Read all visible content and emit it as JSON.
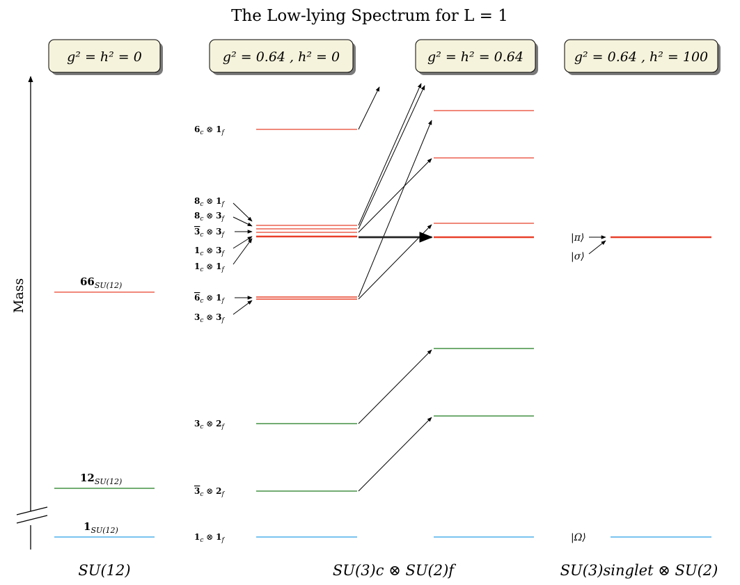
{
  "title": "The Low-lying Spectrum for L = 1",
  "axis": {
    "label": "Mass"
  },
  "boxes": [
    {
      "text": "g² = h² = 0"
    },
    {
      "text": "g² = 0.64 ,  h² = 0"
    },
    {
      "text": "g² = h² = 0.64"
    },
    {
      "text": "g² = 0.64 ,  h² = 100"
    }
  ],
  "columns": {
    "su12": {
      "label": "SU(12)",
      "levels": [
        {
          "rep": "66",
          "sub": "SU(12)",
          "color": "#e8402a",
          "y": 420
        },
        {
          "rep": "12",
          "sub": "SU(12)",
          "color": "#1f7a1f",
          "y": 702
        },
        {
          "rep": "1",
          "sub": "SU(12)",
          "color": "#2aa0e8",
          "y": 772
        }
      ]
    },
    "flavor": {
      "label": "SU(3)c ⊗ SU(2)f",
      "states": [
        {
          "c": "6",
          "cbar": false,
          "f": "1",
          "y": 186,
          "label_y": 186
        },
        {
          "c": "8",
          "cbar": false,
          "f": "1",
          "y": 324,
          "label_y": 289
        },
        {
          "c": "8",
          "cbar": false,
          "f": "3",
          "y": 329,
          "label_y": 310
        },
        {
          "c": "3",
          "cbar": true,
          "f": "3",
          "y": 334,
          "label_y": 333
        },
        {
          "c": "1",
          "cbar": false,
          "f": "3",
          "y": 338,
          "label_y": 360
        },
        {
          "c": "1",
          "cbar": false,
          "f": "1",
          "y": 341,
          "label_y": 383
        },
        {
          "c": "6",
          "cbar": true,
          "f": "1",
          "y": 428,
          "label_y": 428
        },
        {
          "c": "3",
          "cbar": false,
          "f": "3",
          "y": 430,
          "label_y": 456
        },
        {
          "c": "3",
          "cbar": false,
          "f": "2",
          "y": 609,
          "label_y": 609
        },
        {
          "c": "3",
          "cbar": true,
          "f": "2",
          "y": 706,
          "label_y": 706
        },
        {
          "c": "1",
          "cbar": false,
          "f": "1",
          "y": 772,
          "label_y": 772
        }
      ]
    },
    "singlet": {
      "label": "SU(3)singlet ⊗ SU(2)",
      "kets": [
        {
          "text": "|π⟩",
          "y": 341
        },
        {
          "text": "|σ⟩",
          "y": 368
        },
        {
          "text": "|Ω⟩",
          "y": 772
        }
      ]
    }
  },
  "colors": {
    "red": "#e8402a",
    "green": "#1f7a1f",
    "blue": "#2aa0e8",
    "box_fill": "#f6f3dc",
    "box_shadow": "#7a7a7a"
  }
}
